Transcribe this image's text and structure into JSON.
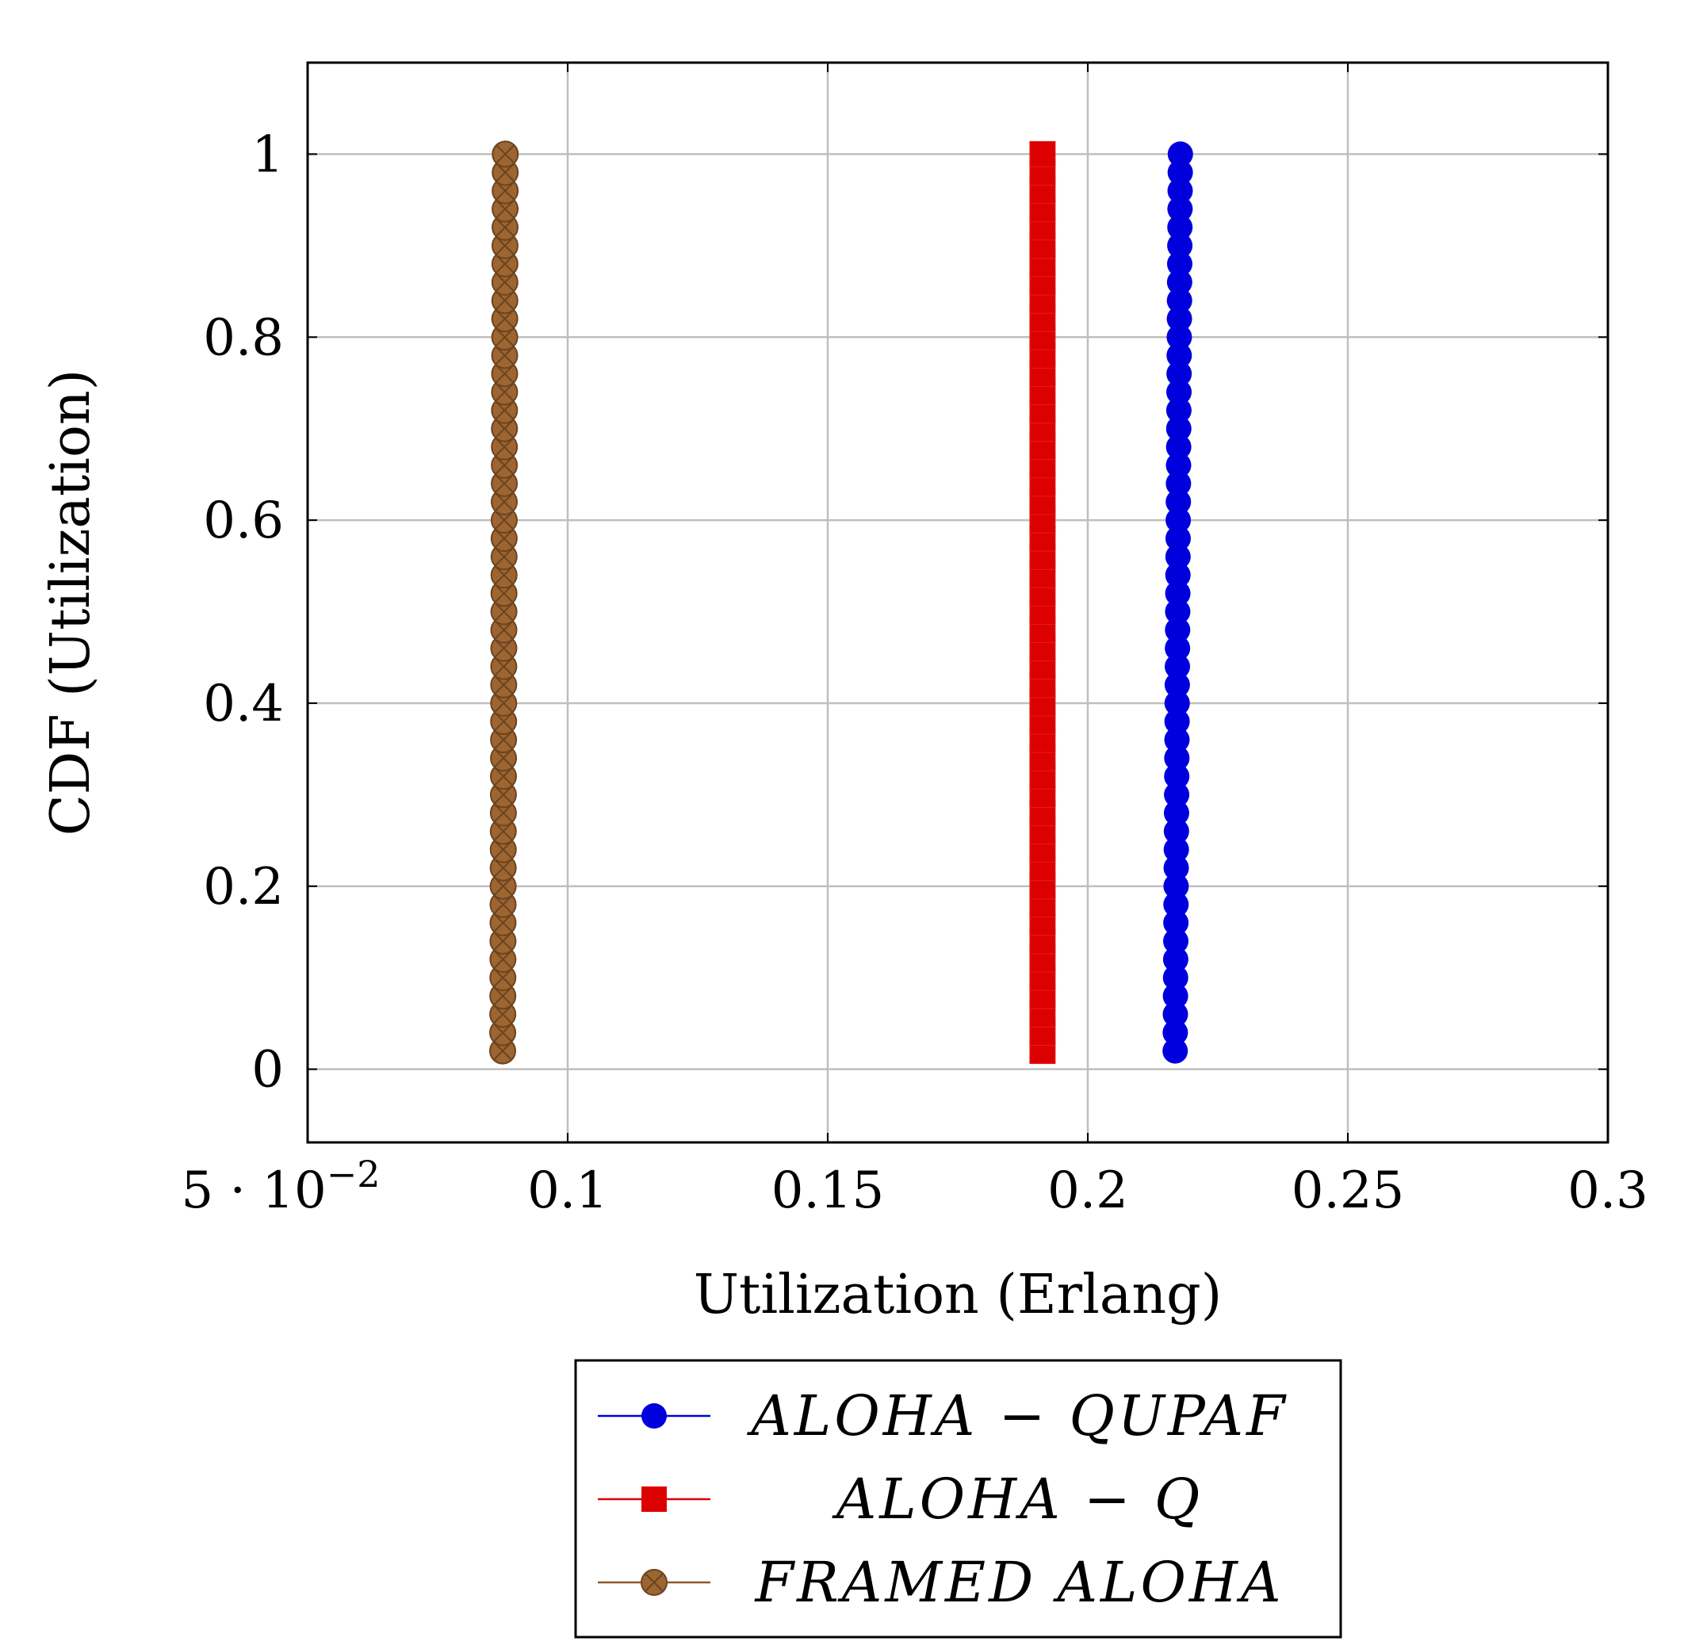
{
  "chart_data": {
    "type": "scatter",
    "title": "",
    "xlabel": "Utilization (Erlang)",
    "ylabel": "CDF (Utilization)",
    "xlim": [
      0.05,
      0.3
    ],
    "ylim": [
      -0.08,
      1.1
    ],
    "grid": true,
    "legend_position": "below",
    "x_ticks": [
      0.05,
      0.1,
      0.15,
      0.2,
      0.25,
      0.3
    ],
    "x_tick_labels": [
      "5 · 10",
      "0.1",
      "0.15",
      "0.2",
      "0.25",
      "0.3"
    ],
    "x_first_tick_exponent": "−2",
    "y_ticks": [
      0,
      0.2,
      0.4,
      0.6,
      0.8,
      1
    ],
    "y_tick_labels": [
      "0",
      "0.2",
      "0.4",
      "0.6",
      "0.8",
      "1"
    ],
    "series": [
      {
        "name": "ALOHA − QUPAF",
        "color": "#0000dd",
        "marker": "circle",
        "x_start": 0.2168,
        "x_end": 0.2178,
        "y_start": 0.02,
        "y_end": 1.0,
        "n_points": 50
      },
      {
        "name": "ALOHA − Q",
        "color": "#dd0000",
        "marker": "square",
        "x_start": 0.1913,
        "x_end": 0.1913,
        "y_start": 0.02,
        "y_end": 1.0,
        "n_points": 50
      },
      {
        "name": "FRAMED ALOHA",
        "color": "#8b5a2b",
        "marker": "circle-x",
        "x_start": 0.0875,
        "x_end": 0.088,
        "y_start": 0.02,
        "y_end": 1.0,
        "n_points": 50
      }
    ]
  }
}
